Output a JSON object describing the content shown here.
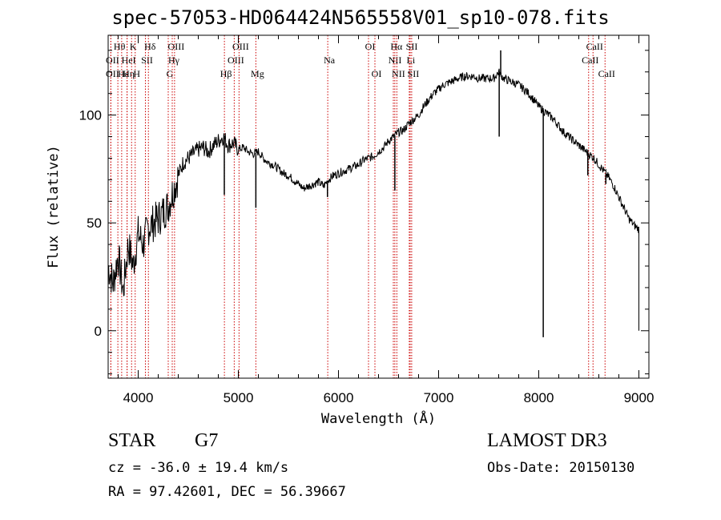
{
  "chart_data": {
    "type": "line",
    "title": "spec-57053-HD064424N565558V01_sp10-078.fits",
    "xlabel": "Wavelength (Å)",
    "ylabel": "Flux (relative)",
    "xlim": [
      3700,
      9100
    ],
    "ylim": [
      -22,
      137
    ],
    "x_ticks": [
      4000,
      5000,
      6000,
      7000,
      8000,
      9000
    ],
    "x_tick_labels": [
      "4000",
      "5000",
      "6000",
      "7000",
      "8000",
      "9000"
    ],
    "y_ticks": [
      0,
      50,
      100
    ],
    "y_tick_labels": [
      "0",
      "50",
      "100"
    ],
    "series": [
      {
        "name": "flux",
        "color": "#000000",
        "x": [
          3700,
          3750,
          3800,
          3850,
          3900,
          3950,
          4000,
          4050,
          4100,
          4150,
          4200,
          4250,
          4300,
          4350,
          4400,
          4450,
          4500,
          4550,
          4600,
          4650,
          4700,
          4750,
          4800,
          4850,
          4900,
          4950,
          5000,
          5050,
          5100,
          5150,
          5200,
          5250,
          5300,
          5350,
          5400,
          5450,
          5500,
          5550,
          5600,
          5650,
          5700,
          5750,
          5800,
          5850,
          5900,
          5950,
          6000,
          6050,
          6100,
          6150,
          6200,
          6250,
          6300,
          6350,
          6400,
          6450,
          6500,
          6550,
          6600,
          6650,
          6700,
          6750,
          6800,
          6850,
          6900,
          6950,
          7000,
          7050,
          7100,
          7150,
          7200,
          7250,
          7300,
          7350,
          7400,
          7450,
          7500,
          7550,
          7600,
          7650,
          7700,
          7750,
          7800,
          7850,
          7900,
          7950,
          8000,
          8050,
          8100,
          8150,
          8200,
          8250,
          8300,
          8350,
          8400,
          8450,
          8500,
          8550,
          8600,
          8650,
          8700,
          8750,
          8800,
          8850,
          8900,
          8950,
          9000
        ],
        "y": [
          30,
          22,
          35,
          18,
          40,
          30,
          45,
          40,
          48,
          50,
          52,
          55,
          58,
          65,
          72,
          78,
          80,
          82,
          84,
          85,
          83,
          86,
          88,
          90,
          86,
          87,
          84,
          85,
          83,
          82,
          83,
          80,
          78,
          77,
          75,
          73,
          72,
          70,
          68,
          66,
          67,
          68,
          69,
          67,
          70,
          72,
          73,
          74,
          75,
          76,
          77,
          79,
          80,
          81,
          83,
          85,
          88,
          90,
          92,
          93,
          96,
          98,
          100,
          104,
          107,
          110,
          112,
          114,
          115,
          116,
          117,
          118,
          118,
          118,
          117,
          117,
          117,
          117,
          120,
          117,
          116,
          115,
          114,
          112,
          110,
          107,
          104,
          102,
          100,
          98,
          95,
          92,
          90,
          88,
          86,
          84,
          82,
          80,
          77,
          74,
          71,
          67,
          62,
          57,
          52,
          49,
          47
        ]
      }
    ],
    "absorption_spikes": [
      {
        "x": 7605,
        "y": 90
      },
      {
        "x": 7620,
        "y": 130
      },
      {
        "x": 8045,
        "y": -3
      },
      {
        "x": 8490,
        "y": 72
      },
      {
        "x": 8670,
        "y": 68
      },
      {
        "x": 4860,
        "y": 63
      },
      {
        "x": 6563,
        "y": 65
      },
      {
        "x": 5175,
        "y": 57
      },
      {
        "x": 5890,
        "y": 62
      }
    ],
    "line_markers": [
      {
        "x": 3797,
        "label": "Hθ",
        "row": 0
      },
      {
        "x": 3727,
        "label": "OII",
        "row": 1
      },
      {
        "x": 3727,
        "label": "OII",
        "row": 2
      },
      {
        "x": 3835,
        "label": "Hε",
        "row": 2
      },
      {
        "x": 3889,
        "label": "HeI",
        "row": 1
      },
      {
        "x": 3889,
        "label": "Hη",
        "row": 2
      },
      {
        "x": 3934,
        "label": "K",
        "row": 0
      },
      {
        "x": 3970,
        "label": "H",
        "row": 2
      },
      {
        "x": 4072,
        "label": "SII",
        "row": 1
      },
      {
        "x": 4102,
        "label": "Hδ",
        "row": 0
      },
      {
        "x": 4300,
        "label": "G",
        "row": 2
      },
      {
        "x": 4340,
        "label": "Hγ",
        "row": 1
      },
      {
        "x": 4363,
        "label": "OIII",
        "row": 0
      },
      {
        "x": 4861,
        "label": "Hβ",
        "row": 2
      },
      {
        "x": 4959,
        "label": "OIII",
        "row": 1
      },
      {
        "x": 5007,
        "label": "OIII",
        "row": 0
      },
      {
        "x": 5175,
        "label": "Mg",
        "row": 2
      },
      {
        "x": 5893,
        "label": "Na",
        "row": 1
      },
      {
        "x": 6300,
        "label": "OI",
        "row": 0
      },
      {
        "x": 6364,
        "label": "OI",
        "row": 2
      },
      {
        "x": 6548,
        "label": "NII",
        "row": 1
      },
      {
        "x": 6563,
        "label": "Hα",
        "row": 0
      },
      {
        "x": 6583,
        "label": "NII",
        "row": 2
      },
      {
        "x": 6707,
        "label": "Li",
        "row": 1
      },
      {
        "x": 6716,
        "label": "SII",
        "row": 0
      },
      {
        "x": 6731,
        "label": "SII",
        "row": 2
      },
      {
        "x": 8498,
        "label": "CaII",
        "row": 1
      },
      {
        "x": 8542,
        "label": "CaII",
        "row": 0
      },
      {
        "x": 8662,
        "label": "CaII",
        "row": 2
      }
    ],
    "marker_color": "#cc0000"
  },
  "info": {
    "object_class": "STAR",
    "subclass": "G7",
    "redshift": "cz = -36.0 ± 19.4 km/s",
    "coords": "RA =  97.42601, DEC =  56.39667",
    "survey": "LAMOST DR3",
    "obs_date": "Obs-Date: 20150130"
  }
}
